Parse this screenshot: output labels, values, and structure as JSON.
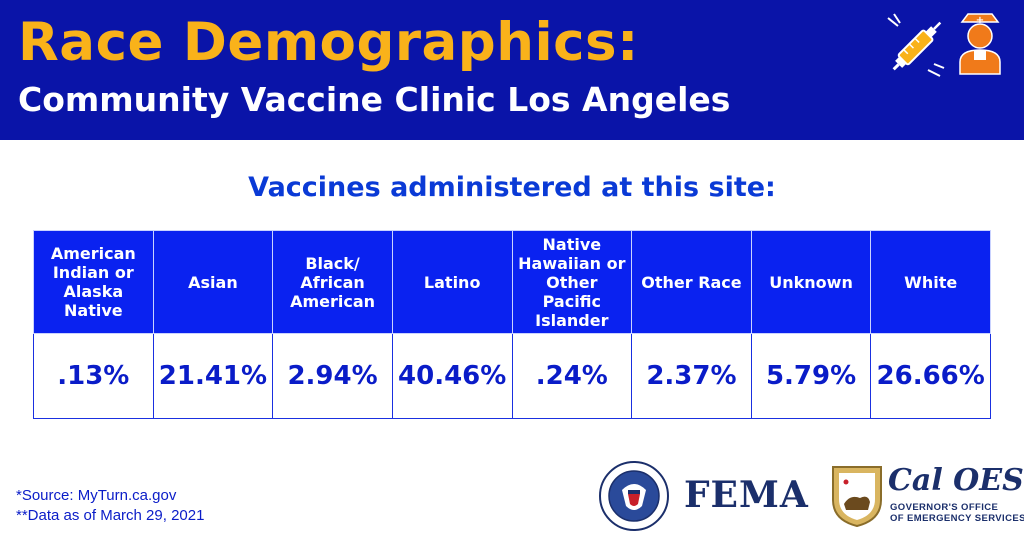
{
  "header": {
    "title": "Race Demographics:",
    "subtitle": "Community Vaccine Clinic Los Angeles",
    "icons": [
      "syringe-icon",
      "nurse-icon"
    ]
  },
  "table": {
    "title": "Vaccines administered at this site:",
    "headers": [
      "American Indian or Alaska Native",
      "Asian",
      "Black/ African American",
      "Latino",
      "Native Hawaiian or Other Pacific Islander",
      "Other Race",
      "Unknown",
      "White"
    ],
    "values": [
      ".13%",
      "21.41%",
      "2.94%",
      "40.46%",
      ".24%",
      "2.37%",
      "5.79%",
      "26.66%"
    ]
  },
  "footnotes": {
    "source": "*Source: MyTurn.ca.gov",
    "data_date": "**Data as of March 29, 2021"
  },
  "logos": {
    "fema": "FEMA",
    "cal_oes": "Cal OES",
    "cal_oes_line1": "GOVERNOR'S OFFICE",
    "cal_oes_line2": "OF EMERGENCY SERVICES"
  },
  "colors": {
    "header_bg": "#0a14a8",
    "title": "#f9b21a",
    "table_header_bg": "#0a22f0",
    "accent_text": "#0a1cc8",
    "logo_navy": "#1b2f6b"
  }
}
